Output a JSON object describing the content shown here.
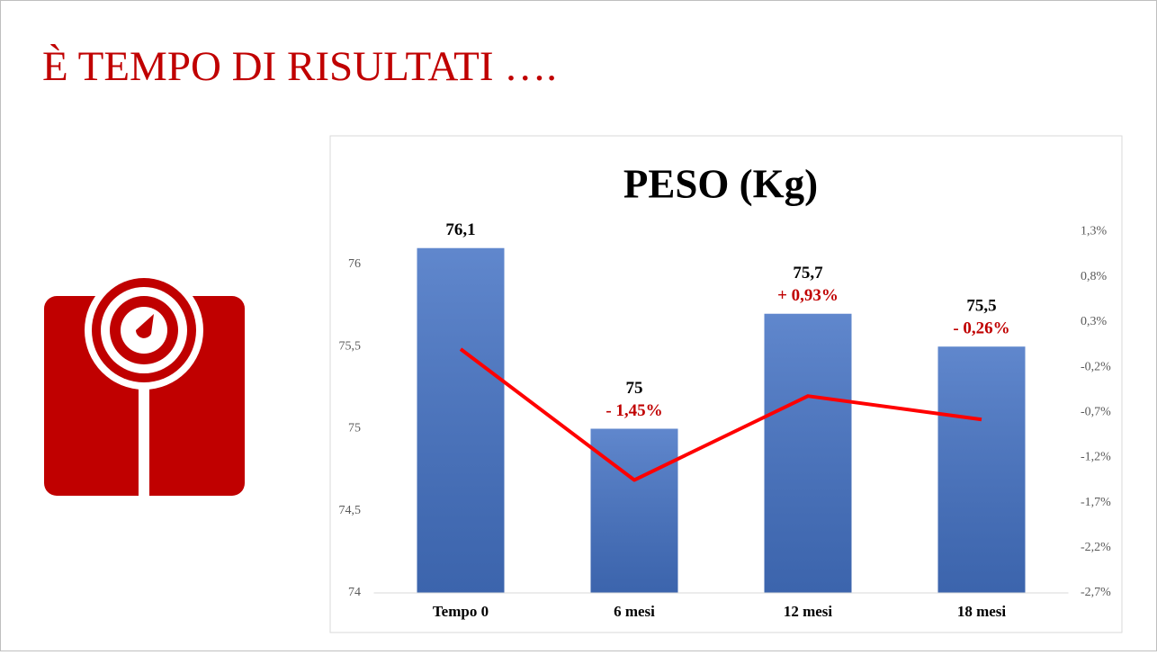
{
  "title": "È TEMPO DI RISULTATI ….",
  "chart_data": {
    "type": "bar",
    "title": "PESO (Kg)",
    "categories": [
      "Tempo 0",
      "6 mesi",
      "12 mesi",
      "18 mesi"
    ],
    "series": [
      {
        "type": "bar",
        "color": "#4472c4",
        "values": [
          76.1,
          75,
          75.7,
          75.5
        ],
        "value_labels": [
          "76,1",
          "75",
          "75,7",
          "75,5"
        ]
      },
      {
        "type": "line",
        "axis": "y2",
        "color": "#ff0000",
        "values": [
          0,
          -1.45,
          -0.52,
          -0.78
        ]
      }
    ],
    "change_labels": [
      "- 1,45%",
      "+ 0,93%",
      "- 0,26%"
    ],
    "ylim": [
      74,
      76.2
    ],
    "yticks": [
      74,
      {
        "value": 74.5,
        "label": "74,5"
      },
      75,
      {
        "value": 75.5,
        "label": "75,5"
      },
      76
    ],
    "y2lim": [
      -2.7,
      1.3
    ],
    "y2ticks": [
      {
        "value": -2.7,
        "label": "-2,7%"
      },
      {
        "value": -2.2,
        "label": "-2,2%"
      },
      {
        "value": -1.7,
        "label": "-1,7%"
      },
      {
        "value": -1.2,
        "label": "-1,2%"
      },
      {
        "value": -0.7,
        "label": "-0,7%"
      },
      {
        "value": -0.2,
        "label": "-0,2%"
      },
      {
        "value": 0.3,
        "label": "0,3%"
      },
      {
        "value": 0.8,
        "label": "0,8%"
      },
      {
        "value": 1.3,
        "label": "1,3%"
      }
    ],
    "grid": false
  }
}
